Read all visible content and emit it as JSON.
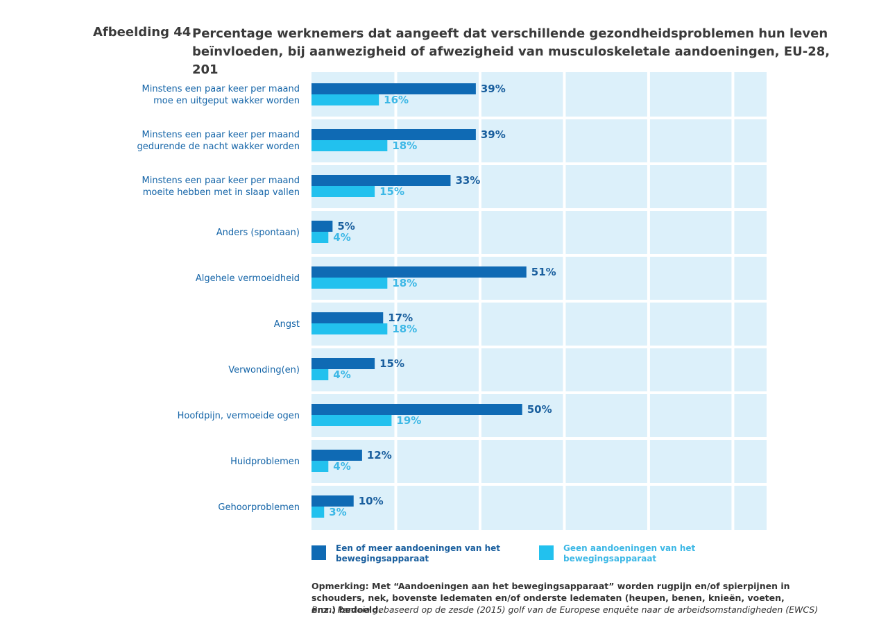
{
  "figure": {
    "label": "Afbeelding 44",
    "title": "Percentage werknemers dat aangeeft dat verschillende gezondheidsproblemen hun leven beïnvloeden, bij aanwezigheid of afwezigheid van musculoskeletale aandoeningen, EU-28, 201"
  },
  "colors": {
    "series1": "#0f6ab4",
    "series2": "#22c1ee",
    "series1_text": "#1a5f9e",
    "series2_text": "#3db8e6",
    "plot_bg": "#dcf0fa",
    "grid": "#ffffff"
  },
  "chart_data": {
    "type": "bar",
    "orientation": "horizontal",
    "categories": [
      "Minstens een paar keer per maand moe en uitgeput wakker worden",
      "Minstens een paar keer per maand gedurende de nacht wakker worden",
      "Minstens een paar keer per maand moeite hebben met in slaap vallen",
      "Anders (spontaan)",
      "Algehele vermoeidheid",
      "Angst",
      "Verwonding(en)",
      "Hoofdpijn, vermoeide ogen",
      "Huidproblemen",
      "Gehoorproblemen"
    ],
    "series": [
      {
        "name": "Een of meer aandoeningen van het bewegingsapparaat",
        "values": [
          39,
          39,
          33,
          5,
          51,
          17,
          15,
          50,
          12,
          10
        ],
        "labels": [
          "39%",
          "39%",
          "33%",
          "5%",
          "51%",
          "17%",
          "15%",
          "50%",
          "12%",
          "10%"
        ]
      },
      {
        "name": "Geen aandoeningen van het bewegingsapparaat",
        "values": [
          16,
          18,
          15,
          4,
          18,
          18,
          4,
          19,
          4,
          3
        ],
        "labels": [
          "16%",
          "18%",
          "15%",
          "4%",
          "18%",
          "18%",
          "4%",
          "19%",
          "4%",
          "3%"
        ]
      }
    ],
    "xlim": [
      0,
      108
    ],
    "grid": true,
    "legend_position": "bottom"
  },
  "note": "Opmerking: Met “Aandoeningen aan het bewegingsapparaat” worden rugpijn en/of spierpijnen in schouders, nek, bovenste ledematen en/of onderste ledematen (heupen, benen, knieën, voeten, enz.) bedoeld.",
  "source": "Bron: Panteia gebaseerd op de zesde (2015) golf van de Europese enquête naar de arbeidsomstandigheden (EWCS)"
}
